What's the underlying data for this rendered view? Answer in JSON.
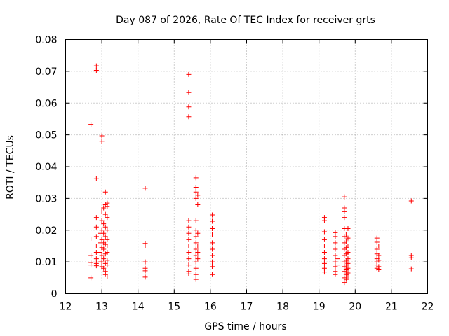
{
  "chart_data": {
    "type": "scatter",
    "title": "Day 087 of 2026, Rate Of TEC Index for receiver grts",
    "xlabel": "GPS time / hours",
    "ylabel": "ROTI / TECUs",
    "xlim": [
      12,
      22
    ],
    "ylim": [
      0,
      0.08
    ],
    "xticks": [
      "12",
      "13",
      "14",
      "15",
      "16",
      "17",
      "18",
      "19",
      "20",
      "21",
      "22"
    ],
    "yticks": [
      "0",
      "0.01",
      "0.02",
      "0.03",
      "0.04",
      "0.05",
      "0.06",
      "0.07",
      "0.08"
    ],
    "grid": true,
    "color": "#ff0000",
    "marker": "plus",
    "series": [
      {
        "points": [
          [
            12.7,
            0.0533
          ],
          [
            12.7,
            0.0172
          ],
          [
            12.7,
            0.012
          ],
          [
            12.7,
            0.0098
          ],
          [
            12.7,
            0.009
          ],
          [
            12.7,
            0.005
          ],
          [
            12.85,
            0.0717
          ],
          [
            12.85,
            0.0703
          ],
          [
            12.85,
            0.0362
          ],
          [
            12.85,
            0.024
          ],
          [
            12.85,
            0.021
          ],
          [
            12.85,
            0.018
          ],
          [
            12.85,
            0.015
          ],
          [
            12.85,
            0.013
          ],
          [
            12.85,
            0.011
          ],
          [
            12.85,
            0.0095
          ],
          [
            12.85,
            0.0088
          ],
          [
            12.95,
            0.019
          ],
          [
            12.95,
            0.016
          ],
          [
            12.95,
            0.013
          ],
          [
            12.95,
            0.01
          ],
          [
            13.0,
            0.0497
          ],
          [
            13.0,
            0.048
          ],
          [
            13.0,
            0.026
          ],
          [
            13.0,
            0.023
          ],
          [
            13.0,
            0.02
          ],
          [
            13.0,
            0.017
          ],
          [
            13.0,
            0.0145
          ],
          [
            13.0,
            0.012
          ],
          [
            13.0,
            0.01
          ],
          [
            13.0,
            0.0085
          ],
          [
            13.05,
            0.027
          ],
          [
            13.05,
            0.022
          ],
          [
            13.05,
            0.019
          ],
          [
            13.05,
            0.016
          ],
          [
            13.05,
            0.014
          ],
          [
            13.05,
            0.011
          ],
          [
            13.05,
            0.008
          ],
          [
            13.1,
            0.032
          ],
          [
            13.1,
            0.028
          ],
          [
            13.1,
            0.025
          ],
          [
            13.1,
            0.021
          ],
          [
            13.1,
            0.018
          ],
          [
            13.1,
            0.0155
          ],
          [
            13.1,
            0.0125
          ],
          [
            13.1,
            0.0095
          ],
          [
            13.1,
            0.007
          ],
          [
            13.1,
            0.006
          ],
          [
            13.15,
            0.0285
          ],
          [
            13.15,
            0.0275
          ],
          [
            13.15,
            0.024
          ],
          [
            13.15,
            0.02
          ],
          [
            13.15,
            0.017
          ],
          [
            13.15,
            0.015
          ],
          [
            13.15,
            0.013
          ],
          [
            13.15,
            0.0105
          ],
          [
            13.15,
            0.009
          ],
          [
            13.15,
            0.0055
          ],
          [
            14.2,
            0.0332
          ],
          [
            14.2,
            0.0158
          ],
          [
            14.2,
            0.015
          ],
          [
            14.2,
            0.01
          ],
          [
            14.2,
            0.008
          ],
          [
            14.2,
            0.0072
          ],
          [
            14.2,
            0.0052
          ],
          [
            15.4,
            0.069
          ],
          [
            15.4,
            0.0633
          ],
          [
            15.4,
            0.0588
          ],
          [
            15.4,
            0.0557
          ],
          [
            15.4,
            0.023
          ],
          [
            15.4,
            0.021
          ],
          [
            15.4,
            0.019
          ],
          [
            15.4,
            0.017
          ],
          [
            15.4,
            0.015
          ],
          [
            15.4,
            0.013
          ],
          [
            15.4,
            0.011
          ],
          [
            15.4,
            0.009
          ],
          [
            15.4,
            0.007
          ],
          [
            15.4,
            0.0062
          ],
          [
            15.6,
            0.0365
          ],
          [
            15.6,
            0.0335
          ],
          [
            15.6,
            0.032
          ],
          [
            15.6,
            0.03
          ],
          [
            15.6,
            0.023
          ],
          [
            15.6,
            0.02
          ],
          [
            15.6,
            0.018
          ],
          [
            15.6,
            0.016
          ],
          [
            15.6,
            0.014
          ],
          [
            15.6,
            0.012
          ],
          [
            15.6,
            0.01
          ],
          [
            15.6,
            0.008
          ],
          [
            15.6,
            0.006
          ],
          [
            15.6,
            0.0045
          ],
          [
            15.65,
            0.031
          ],
          [
            15.65,
            0.028
          ],
          [
            15.65,
            0.019
          ],
          [
            15.65,
            0.015
          ],
          [
            15.65,
            0.013
          ],
          [
            15.65,
            0.011
          ],
          [
            16.05,
            0.0248
          ],
          [
            16.05,
            0.0228
          ],
          [
            16.05,
            0.0205
          ],
          [
            16.05,
            0.0185
          ],
          [
            16.05,
            0.016
          ],
          [
            16.05,
            0.014
          ],
          [
            16.05,
            0.012
          ],
          [
            16.05,
            0.01
          ],
          [
            16.05,
            0.0085
          ],
          [
            16.05,
            0.006
          ],
          [
            19.15,
            0.024
          ],
          [
            19.15,
            0.023
          ],
          [
            19.15,
            0.0195
          ],
          [
            19.15,
            0.017
          ],
          [
            19.15,
            0.015
          ],
          [
            19.15,
            0.013
          ],
          [
            19.15,
            0.011
          ],
          [
            19.15,
            0.0095
          ],
          [
            19.15,
            0.008
          ],
          [
            19.15,
            0.0068
          ],
          [
            19.45,
            0.0192
          ],
          [
            19.45,
            0.018
          ],
          [
            19.45,
            0.016
          ],
          [
            19.45,
            0.014
          ],
          [
            19.45,
            0.012
          ],
          [
            19.45,
            0.01
          ],
          [
            19.45,
            0.0085
          ],
          [
            19.45,
            0.007
          ],
          [
            19.45,
            0.006
          ],
          [
            19.5,
            0.015
          ],
          [
            19.5,
            0.011
          ],
          [
            19.5,
            0.009
          ],
          [
            19.7,
            0.0305
          ],
          [
            19.7,
            0.027
          ],
          [
            19.7,
            0.0258
          ],
          [
            19.7,
            0.024
          ],
          [
            19.7,
            0.0205
          ],
          [
            19.7,
            0.018
          ],
          [
            19.7,
            0.016
          ],
          [
            19.7,
            0.014
          ],
          [
            19.7,
            0.012
          ],
          [
            19.7,
            0.01
          ],
          [
            19.7,
            0.0085
          ],
          [
            19.7,
            0.007
          ],
          [
            19.7,
            0.005
          ],
          [
            19.7,
            0.0035
          ],
          [
            19.75,
            0.0185
          ],
          [
            19.75,
            0.0165
          ],
          [
            19.75,
            0.0145
          ],
          [
            19.75,
            0.0125
          ],
          [
            19.75,
            0.0105
          ],
          [
            19.75,
            0.009
          ],
          [
            19.75,
            0.0075
          ],
          [
            19.75,
            0.006
          ],
          [
            19.75,
            0.0045
          ],
          [
            19.8,
            0.0205
          ],
          [
            19.8,
            0.0175
          ],
          [
            19.8,
            0.015
          ],
          [
            19.8,
            0.013
          ],
          [
            19.8,
            0.011
          ],
          [
            19.8,
            0.0095
          ],
          [
            19.8,
            0.008
          ],
          [
            19.8,
            0.0065
          ],
          [
            19.8,
            0.0055
          ],
          [
            20.6,
            0.0175
          ],
          [
            20.6,
            0.0162
          ],
          [
            20.6,
            0.014
          ],
          [
            20.6,
            0.0125
          ],
          [
            20.6,
            0.011
          ],
          [
            20.6,
            0.01
          ],
          [
            20.6,
            0.009
          ],
          [
            20.6,
            0.008
          ],
          [
            20.65,
            0.015
          ],
          [
            20.65,
            0.012
          ],
          [
            20.65,
            0.0105
          ],
          [
            20.65,
            0.0085
          ],
          [
            20.65,
            0.0075
          ],
          [
            21.55,
            0.0292
          ],
          [
            21.55,
            0.012
          ],
          [
            21.55,
            0.0113
          ],
          [
            21.55,
            0.0078
          ]
        ]
      }
    ]
  }
}
